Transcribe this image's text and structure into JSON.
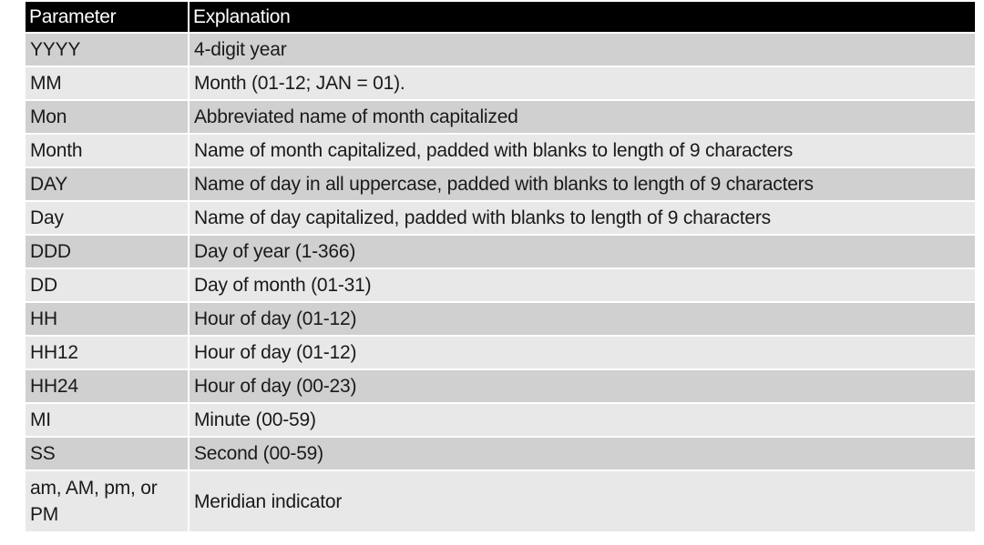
{
  "table": {
    "headers": {
      "parameter": "Parameter",
      "explanation": "Explanation"
    },
    "rows": [
      {
        "parameter": "YYYY",
        "explanation": "4-digit year"
      },
      {
        "parameter": "MM",
        "explanation": "Month (01-12; JAN = 01)."
      },
      {
        "parameter": "Mon",
        "explanation": "Abbreviated name of month capitalized"
      },
      {
        "parameter": "Month",
        "explanation": "Name of month capitalized, padded with blanks to length of 9 characters"
      },
      {
        "parameter": "DAY",
        "explanation": "Name of day in all uppercase, padded with blanks to length of 9 characters"
      },
      {
        "parameter": "Day",
        "explanation": "Name of day capitalized, padded with blanks to length of 9 characters"
      },
      {
        "parameter": "DDD",
        "explanation": "Day of year (1-366)"
      },
      {
        "parameter": "DD",
        "explanation": "Day of month (01-31)"
      },
      {
        "parameter": "HH",
        "explanation": "Hour of day (01-12)"
      },
      {
        "parameter": "HH12",
        "explanation": "Hour of day (01-12)"
      },
      {
        "parameter": "HH24",
        "explanation": "Hour of day (00-23)"
      },
      {
        "parameter": "MI",
        "explanation": "Minute (00-59)"
      },
      {
        "parameter": "SS",
        "explanation": "Second (00-59)"
      },
      {
        "parameter": "am, AM, pm, or PM",
        "explanation": "Meridian indicator"
      }
    ]
  }
}
